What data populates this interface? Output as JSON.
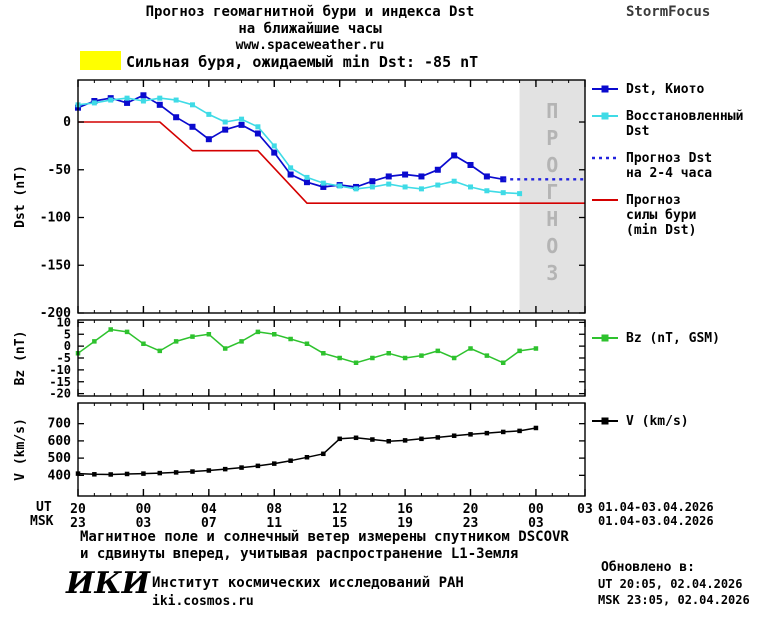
{
  "header": {
    "title1": "Прогноз геомагнитной бури и индекса Dst",
    "title2": "на ближайшие часы",
    "url": "www.spaceweather.ru",
    "brand": "StormFocus"
  },
  "alert": {
    "text": "Сильная буря, ожидаемый min Dst: -85 nT",
    "highlight_color": "#ffff00"
  },
  "legend_main": [
    {
      "label_lines": [
        "Dst, Киото"
      ],
      "color": "#0a0ace",
      "marker": true,
      "dash": null
    },
    {
      "label_lines": [
        "Восстановленный",
        "Dst"
      ],
      "color": "#3fdbe6",
      "marker": true,
      "dash": null
    },
    {
      "label_lines": [
        "Прогноз Dst",
        "на 2-4 часа"
      ],
      "color": "#2222dd",
      "marker": false,
      "dash": "3,4"
    },
    {
      "label_lines": [
        "Прогноз",
        "силы бури",
        "(min Dst)"
      ],
      "color": "#d40000",
      "marker": false,
      "dash": null
    }
  ],
  "legend_bz": {
    "label_lines": [
      "Bz (nT, GSM)"
    ],
    "color": "#2ec22e",
    "marker": true,
    "dash": null
  },
  "legend_v": {
    "label_lines": [
      "V (km/s)"
    ],
    "color": "#000000",
    "marker": true,
    "dash": null
  },
  "xaxis": {
    "ut_label": "UT",
    "msk_label": "MSK",
    "t_range": [
      0,
      31
    ],
    "ticks_t": [
      0,
      4,
      8,
      12,
      16,
      20,
      24,
      28,
      31
    ],
    "ut_ticks": [
      "20",
      "00",
      "04",
      "08",
      "12",
      "16",
      "20",
      "00",
      "03"
    ],
    "msk_ticks_t": [
      0,
      4,
      8,
      12,
      16,
      20,
      24,
      28
    ],
    "msk_ticks": [
      "23",
      "03",
      "07",
      "11",
      "15",
      "19",
      "23",
      "03"
    ],
    "date_range_ut": "01.04-03.04.2026",
    "date_range_msk": "01.04-03.04.2026"
  },
  "chart_data": [
    {
      "type": "line",
      "name": "dst-panel",
      "ylabel": "Dst (nT)",
      "ylim": [
        -200,
        44
      ],
      "yticks": [
        0,
        -50,
        -100,
        -150,
        -200
      ],
      "forecast_band": {
        "t_start": 27,
        "t_end": 31,
        "label": "ПРОГНОЗ"
      },
      "series": [
        {
          "id": "dst-kyoto",
          "name": "Dst, Киото",
          "color": "#0a0ace",
          "width": 1.7,
          "marker_size": 6,
          "x_start": 0,
          "x_step": 1,
          "values": [
            15,
            22,
            25,
            20,
            28,
            18,
            5,
            -5,
            -18,
            -8,
            -3,
            -12,
            -32,
            -55,
            -63,
            -68,
            -66,
            -68,
            -62,
            -57,
            -55,
            -57,
            -50,
            -35,
            -45,
            -57,
            -60
          ]
        },
        {
          "id": "dst-recovered",
          "name": "Восстановленный Dst",
          "color": "#3fdbe6",
          "width": 1.6,
          "marker_size": 5,
          "x_start": 0,
          "x_step": 1,
          "values": [
            18,
            20,
            23,
            25,
            22,
            25,
            23,
            18,
            8,
            0,
            3,
            -5,
            -25,
            -48,
            -58,
            -64,
            -67,
            -70,
            -68,
            -65,
            -68,
            -70,
            -66,
            -62,
            -68,
            -72,
            -74,
            -75
          ]
        },
        {
          "id": "dst-forecast",
          "name": "Прогноз Dst на 2-4 часа",
          "color": "#2222dd",
          "width": 2.4,
          "dash": "3,4",
          "x": [
            26,
            31
          ],
          "values": [
            -60,
            -60
          ]
        },
        {
          "id": "storm-forecast",
          "name": "Прогноз силы бури (min Dst)",
          "color": "#d40000",
          "width": 1.6,
          "x": [
            0,
            5,
            7,
            11,
            14,
            31
          ],
          "values": [
            0,
            0,
            -30,
            -30,
            -85,
            -85
          ]
        }
      ]
    },
    {
      "type": "line",
      "name": "bz-panel",
      "ylabel": "Bz (nT)",
      "ylim": [
        -21,
        11
      ],
      "yticks": [
        10,
        5,
        0,
        -5,
        -10,
        -15,
        -20
      ],
      "series": [
        {
          "id": "bz",
          "name": "Bz (nT, GSM)",
          "color": "#2ec22e",
          "width": 1.5,
          "marker_size": 4.5,
          "x_start": 0,
          "x_step": 1,
          "values": [
            -3,
            2,
            7,
            6,
            1,
            -2,
            2,
            4,
            5,
            -1,
            2,
            6,
            5,
            3,
            1,
            -3,
            -5,
            -7,
            -5,
            -3,
            -5,
            -4,
            -2,
            -5,
            -1,
            -4,
            -7,
            -2,
            -1
          ]
        }
      ]
    },
    {
      "type": "line",
      "name": "v-panel",
      "ylabel": "V (km/s)",
      "ylim": [
        280,
        820
      ],
      "yticks": [
        700,
        600,
        500,
        400
      ],
      "series": [
        {
          "id": "v",
          "name": "V (km/s)",
          "color": "#000000",
          "width": 1.5,
          "marker_size": 4.5,
          "x_start": 0,
          "x_step": 1,
          "values": [
            410,
            406,
            405,
            408,
            410,
            413,
            417,
            422,
            428,
            436,
            445,
            455,
            468,
            485,
            505,
            525,
            612,
            618,
            608,
            598,
            603,
            612,
            620,
            630,
            638,
            645,
            652,
            658,
            675
          ]
        }
      ]
    }
  ],
  "footer": {
    "note1": "Магнитное поле и солнечный ветер измерены спутником DSCOVR",
    "note2": "и сдвинуты вперед, учитывая распространение L1-Земля",
    "updated_label": "Обновлено в:",
    "updated_ut": "UT  20:05, 02.04.2026",
    "updated_msk": "MSK 23:05, 02.04.2026",
    "logo": "ИКИ",
    "institute": "Институт космических исследований РАН",
    "site": "iki.cosmos.ru"
  }
}
